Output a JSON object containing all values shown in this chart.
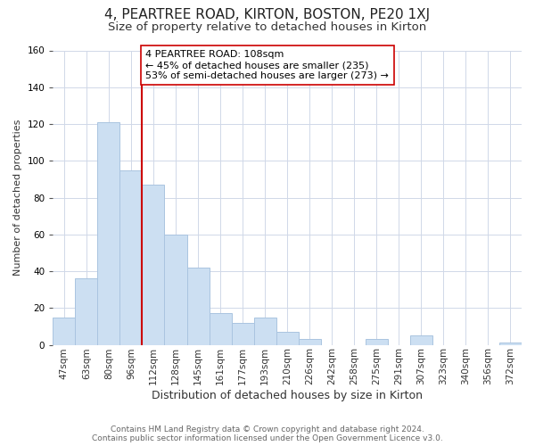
{
  "title": "4, PEARTREE ROAD, KIRTON, BOSTON, PE20 1XJ",
  "subtitle": "Size of property relative to detached houses in Kirton",
  "xlabel": "Distribution of detached houses by size in Kirton",
  "ylabel": "Number of detached properties",
  "bar_labels": [
    "47sqm",
    "63sqm",
    "80sqm",
    "96sqm",
    "112sqm",
    "128sqm",
    "145sqm",
    "161sqm",
    "177sqm",
    "193sqm",
    "210sqm",
    "226sqm",
    "242sqm",
    "258sqm",
    "275sqm",
    "291sqm",
    "307sqm",
    "323sqm",
    "340sqm",
    "356sqm",
    "372sqm"
  ],
  "bar_values": [
    15,
    36,
    121,
    95,
    87,
    60,
    42,
    17,
    12,
    15,
    7,
    3,
    0,
    0,
    3,
    0,
    5,
    0,
    0,
    0,
    1
  ],
  "bar_color": "#ccdff2",
  "bar_edge_color": "#aac4e0",
  "vline_color": "#cc0000",
  "annotation_text": "4 PEARTREE ROAD: 108sqm\n← 45% of detached houses are smaller (235)\n53% of semi-detached houses are larger (273) →",
  "annotation_box_color": "#ffffff",
  "annotation_box_edge_color": "#cc0000",
  "ylim": [
    0,
    160
  ],
  "yticks": [
    0,
    20,
    40,
    60,
    80,
    100,
    120,
    140,
    160
  ],
  "footer": "Contains HM Land Registry data © Crown copyright and database right 2024.\nContains public sector information licensed under the Open Government Licence v3.0.",
  "title_fontsize": 11,
  "subtitle_fontsize": 9.5,
  "xlabel_fontsize": 9,
  "ylabel_fontsize": 8,
  "tick_fontsize": 7.5,
  "annotation_fontsize": 8,
  "footer_fontsize": 6.5,
  "background_color": "#ffffff",
  "grid_color": "#d0d8e8"
}
